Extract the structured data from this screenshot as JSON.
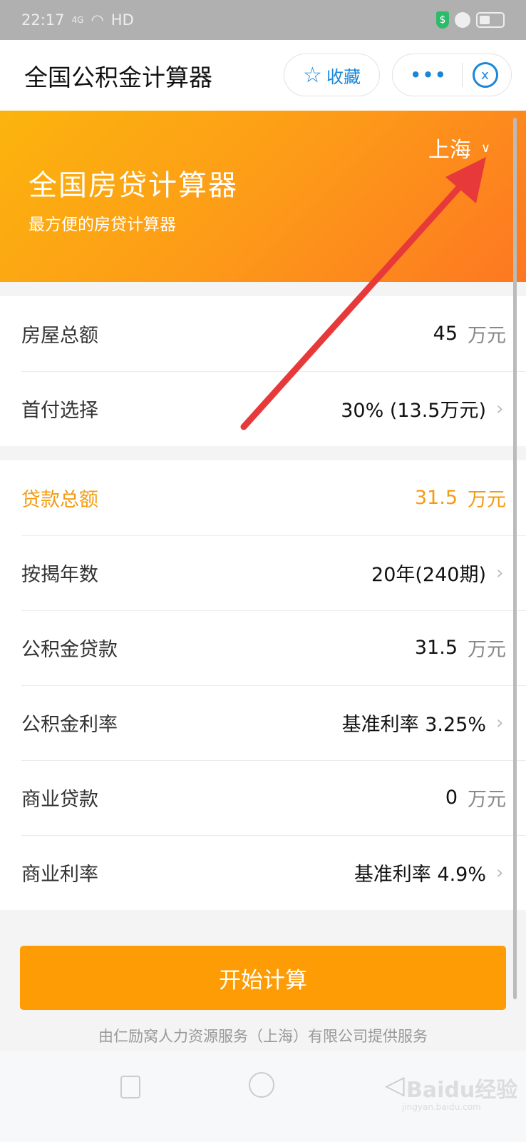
{
  "status": {
    "time": "22:17",
    "network": "4G",
    "hd": "HD",
    "shield": "$"
  },
  "titlebar": {
    "title": "全国公积金计算器",
    "favorite_label": "收藏",
    "more_label": "•••"
  },
  "banner": {
    "city": "上海",
    "title": "全国房贷计算器",
    "subtitle": "最方便的房贷计算器"
  },
  "group1": [
    {
      "label": "房屋总额",
      "value": "45",
      "unit": "万元"
    },
    {
      "label": "首付选择",
      "value": "30% (13.5万元)",
      "chevron": "›"
    }
  ],
  "group2": [
    {
      "label": "贷款总额",
      "value": "31.5",
      "unit": "万元"
    },
    {
      "label": "按揭年数",
      "value": "20年(240期)",
      "chevron": "›"
    },
    {
      "label": "公积金贷款",
      "value": "31.5",
      "unit": "万元"
    },
    {
      "label": "公积金利率",
      "value": "基准利率 3.25%",
      "chevron": "›"
    },
    {
      "label": "商业贷款",
      "value": "0",
      "unit": "万元"
    },
    {
      "label": "商业利率",
      "value": "基准利率 4.9%",
      "chevron": "›"
    }
  ],
  "calculate_label": "开始计算",
  "footer": "由仁励窝人力资源服务（上海）有限公司提供服务",
  "watermark": {
    "brand": "Baidu经验",
    "url": "jingyan.baidu.com"
  },
  "colors": {
    "accent": "#fd9c05",
    "highlight": "#f39c12",
    "link": "#1a86d8",
    "arrow": "#e8393a"
  }
}
